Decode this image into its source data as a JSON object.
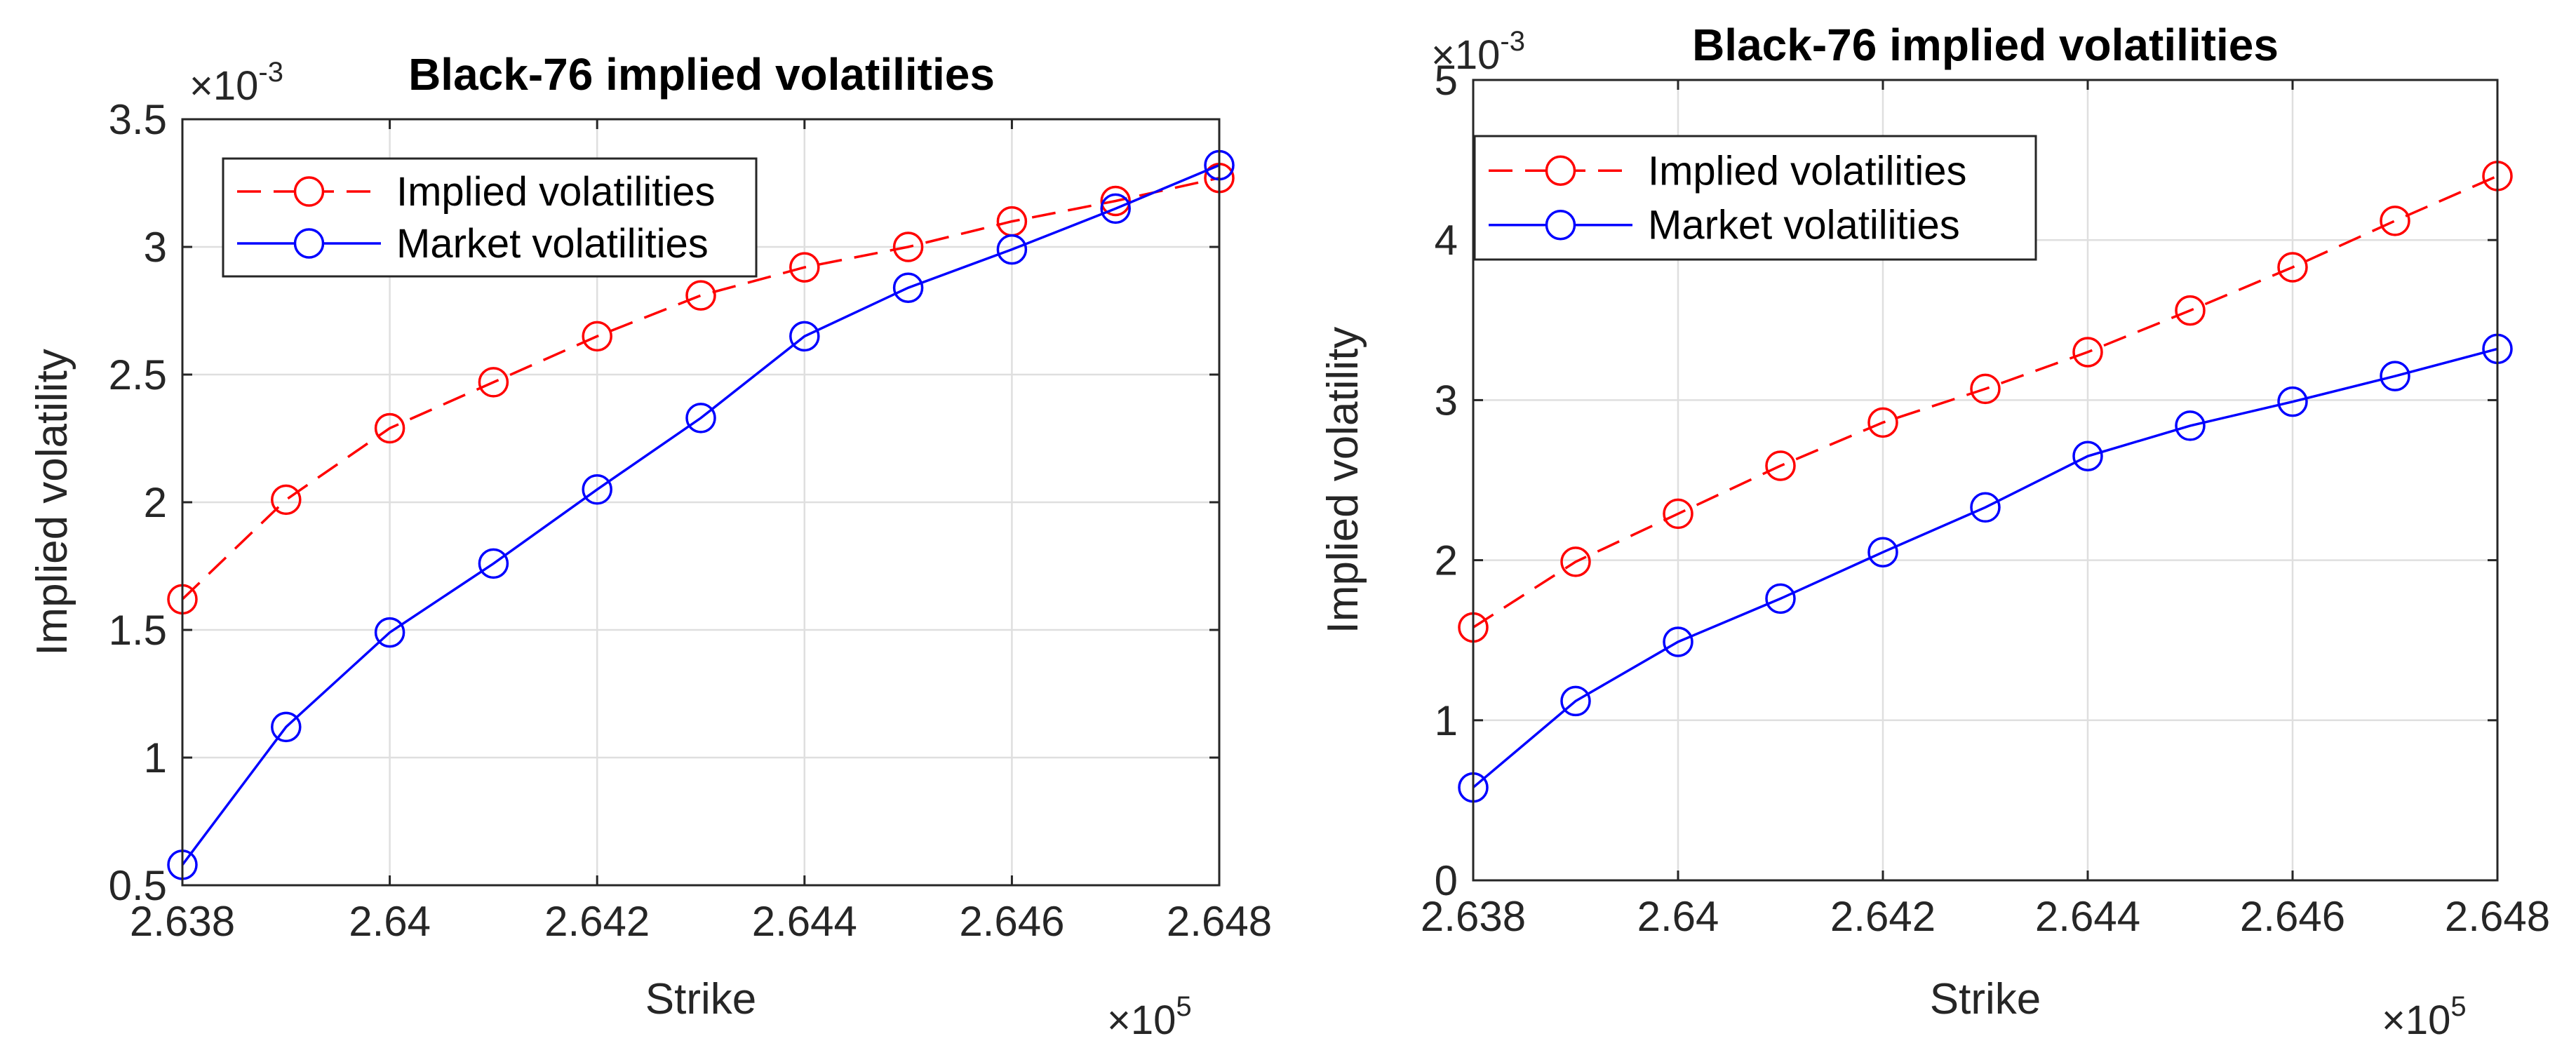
{
  "chart_data": [
    {
      "type": "line",
      "title": "Black-76 implied volatilities",
      "xlabel": "Strike",
      "ylabel": "Implied volatility",
      "x_exponent_base": "×10",
      "x_exponent_power": "5",
      "y_exponent_base": "×10",
      "y_exponent_power": "-3",
      "xlim": [
        2.638,
        2.648
      ],
      "ylim": [
        0.5,
        3.5
      ],
      "x_ticks": [
        2.638,
        2.64,
        2.642,
        2.644,
        2.646,
        2.648
      ],
      "x_tick_labels": [
        "2.638",
        "2.64",
        "2.642",
        "2.644",
        "2.646",
        "2.648"
      ],
      "y_ticks": [
        0.5,
        1,
        1.5,
        2,
        2.5,
        3,
        3.5
      ],
      "y_tick_labels": [
        "0.5",
        "1",
        "1.5",
        "2",
        "2.5",
        "3",
        "3.5"
      ],
      "grid": true,
      "legend_position": "top-left",
      "x": [
        2.638,
        2.639,
        2.64,
        2.641,
        2.642,
        2.643,
        2.644,
        2.645,
        2.646,
        2.647,
        2.648
      ],
      "series": [
        {
          "name": "Implied volatilities",
          "color": "#ff0000",
          "line_style": "dashed",
          "marker": "circle",
          "values": [
            1.62,
            2.01,
            2.29,
            2.47,
            2.65,
            2.81,
            2.92,
            3.0,
            3.1,
            3.18,
            3.27
          ]
        },
        {
          "name": "Market volatilities",
          "color": "#0000ff",
          "line_style": "solid",
          "marker": "circle",
          "values": [
            0.58,
            1.12,
            1.49,
            1.76,
            2.05,
            2.33,
            2.65,
            2.84,
            2.99,
            3.15,
            3.32
          ]
        }
      ]
    },
    {
      "type": "line",
      "title": "Black-76 implied volatilities",
      "xlabel": "Strike",
      "ylabel": "Implied volatility",
      "x_exponent_base": "×10",
      "x_exponent_power": "5",
      "y_exponent_base": "×10",
      "y_exponent_power": "-3",
      "xlim": [
        2.638,
        2.648
      ],
      "ylim": [
        0,
        5
      ],
      "x_ticks": [
        2.638,
        2.64,
        2.642,
        2.644,
        2.646,
        2.648
      ],
      "x_tick_labels": [
        "2.638",
        "2.64",
        "2.642",
        "2.644",
        "2.646",
        "2.648"
      ],
      "y_ticks": [
        0,
        1,
        2,
        3,
        4,
        5
      ],
      "y_tick_labels": [
        "0",
        "1",
        "2",
        "3",
        "4",
        "5"
      ],
      "grid": true,
      "legend_position": "top-left",
      "x": [
        2.638,
        2.639,
        2.64,
        2.641,
        2.642,
        2.643,
        2.644,
        2.645,
        2.646,
        2.647,
        2.648
      ],
      "series": [
        {
          "name": "Implied volatilities",
          "color": "#ff0000",
          "line_style": "dashed",
          "marker": "circle",
          "values": [
            1.58,
            1.99,
            2.29,
            2.59,
            2.86,
            3.07,
            3.3,
            3.56,
            3.83,
            4.12,
            4.4
          ]
        },
        {
          "name": "Market volatilities",
          "color": "#0000ff",
          "line_style": "solid",
          "marker": "circle",
          "values": [
            0.58,
            1.12,
            1.49,
            1.76,
            2.05,
            2.33,
            2.65,
            2.84,
            2.99,
            3.15,
            3.32
          ]
        }
      ]
    }
  ]
}
